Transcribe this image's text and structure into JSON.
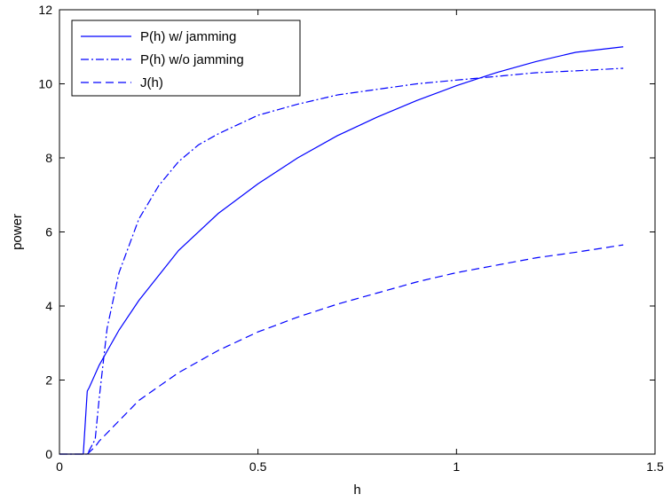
{
  "chart_data": {
    "type": "line",
    "xlabel": "h",
    "ylabel": "power",
    "xlim": [
      0,
      1.5
    ],
    "ylim": [
      0,
      12
    ],
    "xticks": [
      "0",
      "0.5",
      "1",
      "1.5"
    ],
    "yticks": [
      "0",
      "2",
      "4",
      "6",
      "8",
      "10",
      "12"
    ],
    "grid": false,
    "legend_position": "top-left",
    "series_color": "#0000ff",
    "series": [
      {
        "name": "P(h) w/ jamming",
        "style": "solid",
        "x": [
          0,
          0.06,
          0.07,
          0.075,
          0.1,
          0.15,
          0.2,
          0.3,
          0.4,
          0.5,
          0.6,
          0.7,
          0.8,
          0.9,
          1.0,
          1.1,
          1.2,
          1.3,
          1.42
        ],
        "y": [
          0,
          0,
          1.7,
          1.8,
          2.4,
          3.35,
          4.15,
          5.5,
          6.5,
          7.3,
          8.0,
          8.6,
          9.1,
          9.55,
          9.95,
          10.3,
          10.6,
          10.85,
          11.0
        ]
      },
      {
        "name": "P(h) w/o jamming",
        "style": "dashdot",
        "x": [
          0,
          0.07,
          0.09,
          0.1,
          0.12,
          0.15,
          0.2,
          0.25,
          0.3,
          0.35,
          0.4,
          0.5,
          0.6,
          0.7,
          0.8,
          0.9,
          1.0,
          1.1,
          1.2,
          1.3,
          1.42
        ],
        "y": [
          0,
          0,
          0.4,
          1.5,
          3.4,
          4.9,
          6.35,
          7.25,
          7.9,
          8.35,
          8.65,
          9.15,
          9.45,
          9.7,
          9.85,
          10.0,
          10.1,
          10.2,
          10.3,
          10.35,
          10.42
        ]
      },
      {
        "name": "J(h)",
        "style": "dashed",
        "x": [
          0.07,
          0.09,
          0.1,
          0.15,
          0.2,
          0.3,
          0.4,
          0.5,
          0.6,
          0.7,
          0.8,
          0.9,
          1.0,
          1.1,
          1.2,
          1.3,
          1.42
        ],
        "y": [
          0,
          0.2,
          0.35,
          0.9,
          1.45,
          2.2,
          2.8,
          3.3,
          3.7,
          4.05,
          4.35,
          4.65,
          4.9,
          5.1,
          5.3,
          5.45,
          5.65
        ]
      }
    ]
  }
}
